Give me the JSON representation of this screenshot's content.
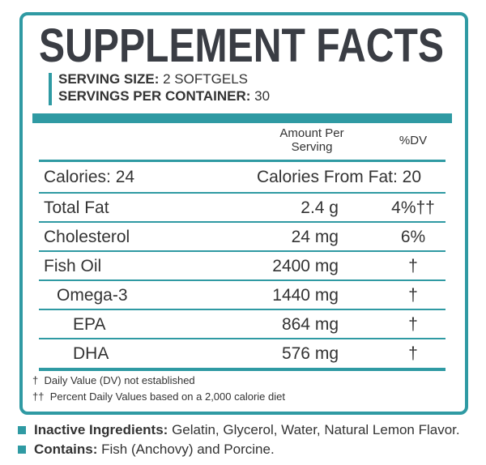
{
  "title": "SUPPLEMENT FACTS",
  "serving": [
    {
      "label": "SERVING SIZE:",
      "value": "2 SOFTGELS"
    },
    {
      "label": "SERVINGS PER CONTAINER:",
      "value": "30"
    }
  ],
  "table": {
    "header": {
      "amount_lines": [
        "Amount Per",
        "Serving"
      ],
      "dv": "%DV"
    },
    "calories": {
      "left": "Calories: 24",
      "right": "Calories From Fat: 20"
    },
    "rows": [
      [
        "Total Fat",
        "2.4 g",
        "4%††"
      ],
      [
        "Cholesterol",
        "24 mg",
        "6%"
      ],
      [
        "Fish Oil",
        "2400 mg",
        "†"
      ],
      [
        "Omega-3",
        "1440 mg",
        "†"
      ],
      [
        "EPA",
        "864 mg",
        "†"
      ],
      [
        "DHA",
        "576 mg",
        "†"
      ]
    ]
  },
  "footnotes": [
    {
      "mark": "†",
      "text": "Daily Value (DV) not established"
    },
    {
      "mark": "††",
      "text": "Percent Daily Values based on a 2,000 calorie diet"
    }
  ],
  "notes": [
    {
      "label": "Inactive Ingredients:",
      "text": "Gelatin, Glycerol, Water, Natural Lemon Flavor."
    },
    {
      "label": "Contains:",
      "text": "Fish (Anchovy) and Porcine."
    }
  ]
}
